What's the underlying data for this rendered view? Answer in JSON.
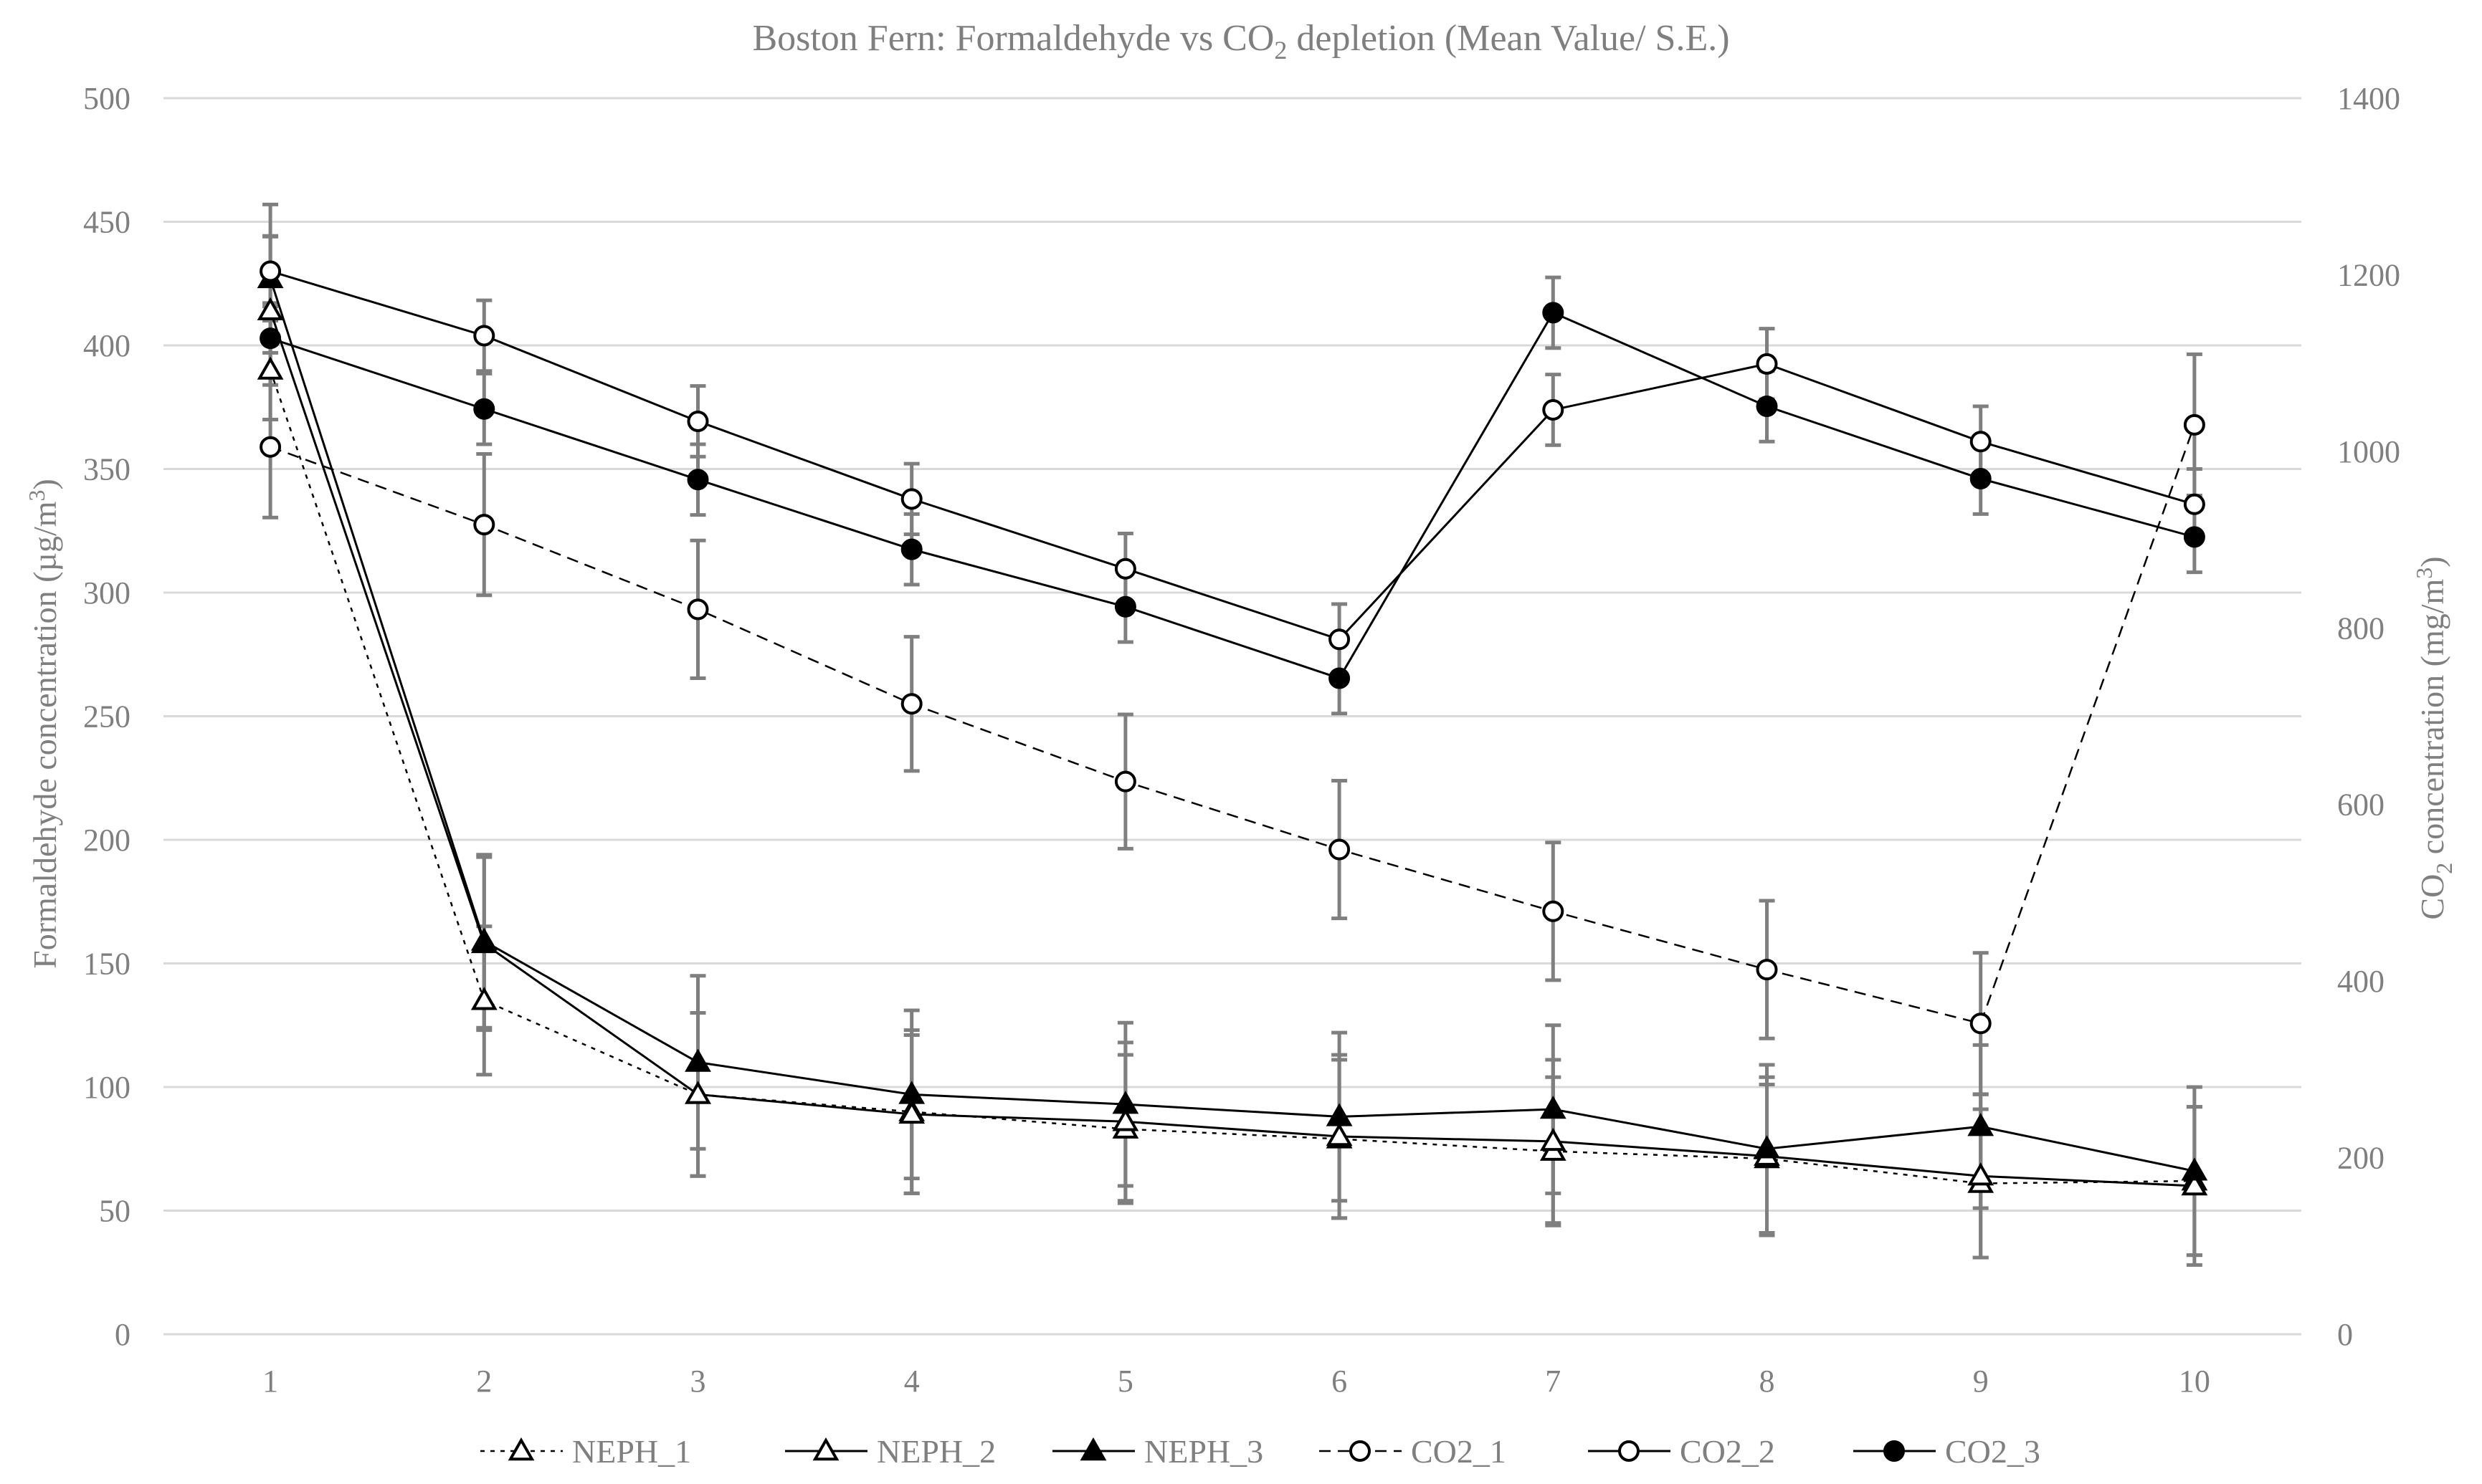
{
  "chart_data": {
    "type": "line",
    "title": "Boston Fern: Formaldehyde vs CO2  depletion (Mean Value/ S.E.)",
    "title_parts": {
      "main": "Boston Fern: Formaldehyde vs CO",
      "sub": "2",
      "tail": "  depletion (Mean Value/ S.E.)"
    },
    "xlabel": "",
    "ylabel": "Formaldehyde concentration (µg/m3)",
    "ylabel_parts": {
      "main": "Formaldehyde concentration (µg/m",
      "sup": "3",
      "tail": ")"
    },
    "y2label": "CO2  concentration (mg/m3)",
    "y2label_parts": {
      "pre": "CO",
      "sub": "2",
      "mid": "  concentration (mg/m",
      "sup": "3",
      "tail": ")"
    },
    "categories": [
      "1",
      "2",
      "3",
      "4",
      "5",
      "6",
      "7",
      "8",
      "9",
      "10"
    ],
    "ylim": [
      0,
      500
    ],
    "y_ticks": [
      "0",
      "50",
      "100",
      "150",
      "200",
      "250",
      "300",
      "350",
      "400",
      "450",
      "500"
    ],
    "y2lim": [
      0,
      1400
    ],
    "y2_ticks": [
      "0",
      "200",
      "400",
      "600",
      "800",
      "1000",
      "1200",
      "1400"
    ],
    "grid": true,
    "legend_position": "bottom",
    "series": [
      {
        "name": "NEPH_1",
        "axis": "left",
        "marker": "triangle",
        "filled": false,
        "line": "dotted",
        "values": [
          390,
          135,
          97,
          90,
          83,
          79,
          74,
          71,
          61,
          62
        ],
        "error": [
          20,
          30,
          33,
          33,
          30,
          32,
          30,
          30,
          30,
          30
        ]
      },
      {
        "name": "NEPH_2",
        "axis": "left",
        "marker": "triangle",
        "filled": false,
        "line": "solid",
        "values": [
          414,
          158,
          97,
          89,
          86,
          80,
          78,
          72,
          64,
          60
        ],
        "error": [
          30,
          35,
          33,
          32,
          32,
          33,
          33,
          32,
          33,
          32
        ]
      },
      {
        "name": "NEPH_3",
        "axis": "left",
        "marker": "triangle",
        "filled": true,
        "line": "solid",
        "values": [
          427,
          159,
          110,
          97,
          93,
          88,
          91,
          75,
          84,
          66
        ],
        "error": [
          30,
          35,
          35,
          34,
          33,
          34,
          34,
          34,
          33,
          34
        ]
      },
      {
        "name": "CO2_1",
        "axis": "right",
        "marker": "circle",
        "filled": false,
        "line": "dashed",
        "values": [
          1005,
          917,
          821,
          714,
          626,
          549,
          479,
          413,
          352,
          1030
        ],
        "error": [
          80,
          80,
          78,
          76,
          76,
          78,
          78,
          78,
          80,
          80
        ]
      },
      {
        "name": "CO2_2",
        "axis": "right",
        "marker": "circle",
        "filled": false,
        "line": "solid",
        "values": [
          1204,
          1131,
          1034,
          946,
          867,
          787,
          1047,
          1099,
          1011,
          940
        ],
        "error": [
          40,
          40,
          40,
          40,
          40,
          40,
          40,
          40,
          40,
          40
        ]
      },
      {
        "name": "CO2_3",
        "axis": "right",
        "marker": "circle",
        "filled": true,
        "line": "solid",
        "values": [
          1128,
          1048,
          968,
          889,
          824,
          743,
          1157,
          1051,
          969,
          903
        ],
        "error": [
          40,
          40,
          40,
          40,
          40,
          40,
          40,
          40,
          40,
          40
        ]
      }
    ]
  }
}
